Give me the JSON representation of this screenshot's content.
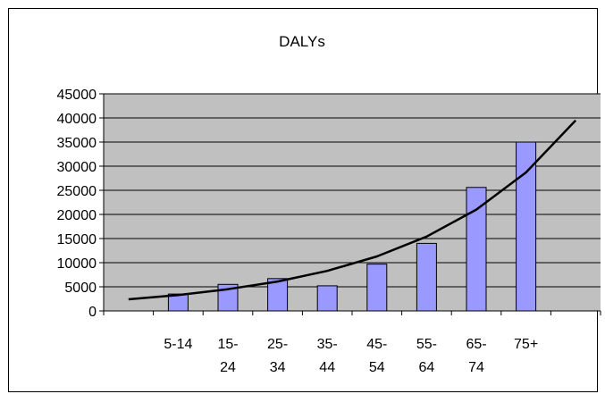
{
  "chart_data": {
    "type": "bar",
    "title": "DALYs",
    "xlabel": "",
    "ylabel": "",
    "categories": [
      [
        "5-14"
      ],
      [
        "15-",
        "24"
      ],
      [
        "25-",
        "34"
      ],
      [
        "35-",
        "44"
      ],
      [
        "45-",
        "54"
      ],
      [
        "55-",
        "64"
      ],
      [
        "65-",
        "74"
      ],
      [
        "75+"
      ]
    ],
    "series": [
      {
        "values": [
          3500,
          5500,
          6700,
          5200,
          9700,
          14000,
          25600,
          35000
        ]
      }
    ],
    "trendline": {
      "type": "exponential",
      "x": [
        0,
        1,
        2,
        3,
        4,
        5,
        6,
        7,
        8,
        9
      ],
      "y": [
        2400,
        3300,
        4500,
        6100,
        8300,
        11300,
        15400,
        21000,
        28700,
        39500
      ]
    },
    "ylim": [
      0,
      45000
    ],
    "yticks": [
      0,
      5000,
      10000,
      15000,
      20000,
      25000,
      30000,
      35000,
      40000,
      45000
    ],
    "grid": true,
    "legend": "none",
    "colors": {
      "plot_background": "#c0c0c0",
      "bar_fill": "#9999ff",
      "bar_stroke": "#000000",
      "trendline": "#000000",
      "gridline": "#000000"
    }
  }
}
